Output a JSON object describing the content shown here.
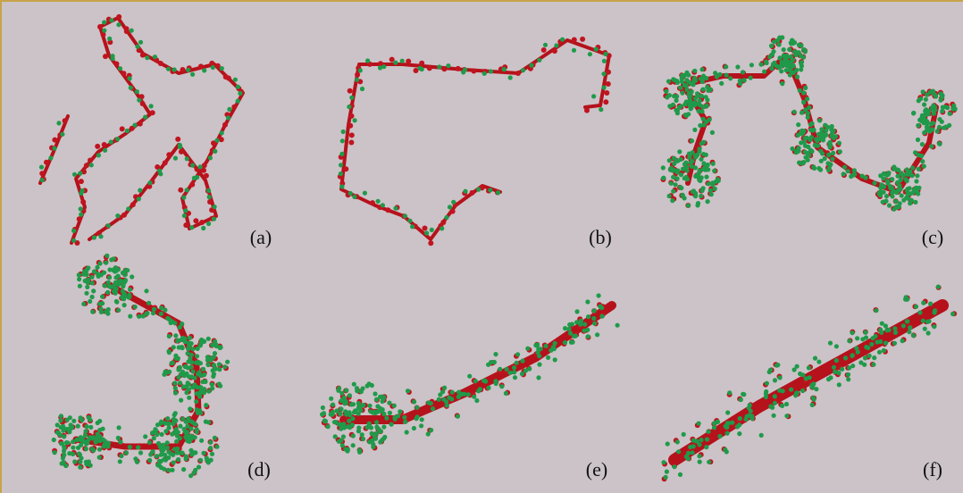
{
  "panels": [
    {
      "label": "(a)"
    },
    {
      "label": "(b)"
    },
    {
      "label": "(c)"
    },
    {
      "label": "(d)"
    },
    {
      "label": "(e)"
    },
    {
      "label": "(f)"
    }
  ]
}
